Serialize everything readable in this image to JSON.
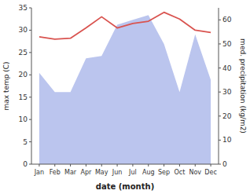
{
  "chart_data": {
    "type": "line",
    "categories": [
      "Jan",
      "Feb",
      "Mar",
      "Apr",
      "May",
      "Jun",
      "Jul",
      "Aug",
      "Sep",
      "Oct",
      "Nov",
      "Dec"
    ],
    "xlabel": "date (month)",
    "ylabel": "max temp (C)",
    "y2label": "med. precipitation (kg/m2)",
    "series": [
      {
        "type": "area",
        "axis": "y2",
        "color": "#bbc5ee",
        "values": [
          38,
          30,
          30,
          44,
          45,
          58,
          60,
          62,
          50,
          30,
          54,
          35
        ]
      },
      {
        "type": "line",
        "color": "#d9534f",
        "values": [
          28.5,
          28.0,
          28.2,
          30.5,
          33.0,
          30.5,
          31.5,
          32.0,
          34.0,
          32.5,
          30.0,
          29.5
        ]
      }
    ],
    "ylim": [
      0,
      35
    ],
    "yticks": [
      0,
      5,
      10,
      15,
      20,
      25,
      30,
      35
    ],
    "y2lim": [
      0,
      65
    ],
    "y2ticks": [
      0,
      10,
      20,
      30,
      40,
      50,
      60
    ],
    "grid": false
  }
}
